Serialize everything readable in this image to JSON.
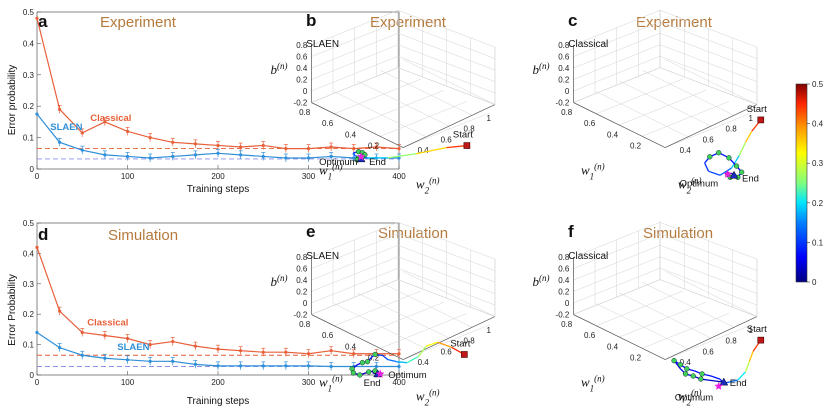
{
  "chart_data": {
    "colormap": [
      "#00007f",
      "#0000ff",
      "#0080ff",
      "#00e5ff",
      "#7fff7f",
      "#ffff00",
      "#ff9900",
      "#ff2600",
      "#7f0000"
    ],
    "colorbar": {
      "ticks": [
        "0",
        "0.1",
        "0.2",
        "0.3",
        "0.4",
        "0.5"
      ]
    },
    "line_panels": [
      {
        "panel": "a",
        "title": "Experiment",
        "type": "line",
        "xlabel": "Training steps",
        "ylabel": "Error probability",
        "xlim": [
          0,
          400
        ],
        "ylim": [
          0,
          0.5
        ],
        "xticks": [
          "0",
          "100",
          "200",
          "300",
          "400"
        ],
        "yticks": [
          "0",
          "0.1",
          "0.2",
          "0.3",
          "0.4",
          "0.5"
        ],
        "x": [
          0,
          25,
          50,
          75,
          100,
          125,
          150,
          175,
          200,
          225,
          250,
          275,
          300,
          325,
          350,
          375,
          400
        ],
        "series": [
          {
            "name": "Classical",
            "color": "#e8603a",
            "values": [
              0.48,
              0.19,
              0.115,
              0.15,
              0.12,
              0.1,
              0.085,
              0.08,
              0.075,
              0.07,
              0.075,
              0.065,
              0.065,
              0.07,
              0.065,
              0.07,
              0.065
            ]
          },
          {
            "name": "SLAEN",
            "color": "#2f8fd8",
            "values": [
              0.175,
              0.085,
              0.06,
              0.045,
              0.04,
              0.035,
              0.04,
              0.045,
              0.05,
              0.045,
              0.04,
              0.035,
              0.035,
              0.04,
              0.035,
              0.035,
              0.035
            ]
          }
        ],
        "dashed": [
          {
            "color": "#e8603a",
            "value": 0.065
          },
          {
            "color": "#8a8fe8",
            "value": 0.032
          }
        ]
      },
      {
        "panel": "d",
        "title": "Simulation",
        "type": "line",
        "xlabel": "Training steps",
        "ylabel": "Error Probability",
        "xlim": [
          0,
          400
        ],
        "ylim": [
          0,
          0.5
        ],
        "xticks": [
          "0",
          "100",
          "200",
          "300",
          "400"
        ],
        "yticks": [
          "0",
          "0.1",
          "0.2",
          "0.3",
          "0.4",
          "0.5"
        ],
        "x": [
          0,
          25,
          50,
          75,
          100,
          125,
          150,
          175,
          200,
          225,
          250,
          275,
          300,
          325,
          350,
          375,
          400
        ],
        "series": [
          {
            "name": "Classical",
            "color": "#e8603a",
            "values": [
              0.42,
              0.21,
              0.14,
              0.13,
              0.12,
              0.1,
              0.11,
              0.095,
              0.085,
              0.08,
              0.075,
              0.075,
              0.07,
              0.08,
              0.07,
              0.07,
              0.07
            ]
          },
          {
            "name": "SLAEN",
            "color": "#2f8fd8",
            "values": [
              0.14,
              0.09,
              0.065,
              0.055,
              0.05,
              0.045,
              0.045,
              0.035,
              0.03,
              0.03,
              0.03,
              0.03,
              0.03,
              0.028,
              0.028,
              0.028,
              0.028
            ]
          }
        ],
        "dashed": [
          {
            "color": "#e8603a",
            "value": 0.065
          },
          {
            "color": "#8a8fe8",
            "value": 0.028
          }
        ]
      }
    ],
    "traj_panels": [
      {
        "panel": "b",
        "title": "Experiment",
        "corner": "SLAEN",
        "type": "3d-trajectory",
        "zlabel": "b(n)",
        "xlabel": "w1(n)",
        "ylabel": "w2(n)",
        "zticks": [
          "-0.2",
          "0",
          "0.2",
          "0.4",
          "0.6",
          "0.8"
        ],
        "xticks": [
          "0.8",
          "0.6",
          "0.4",
          "0.2"
        ],
        "yticks": [
          "0.4",
          "0.6",
          "0.8",
          "1"
        ],
        "annotations": {
          "start": "Start",
          "end": "End",
          "optimum": "Optimum"
        },
        "path": [
          {
            "x": 0.78,
            "y": 0.71,
            "e": 0.48
          },
          {
            "x": 0.7,
            "y": 0.72,
            "e": 0.4
          },
          {
            "x": 0.58,
            "y": 0.75,
            "e": 0.3
          },
          {
            "x": 0.47,
            "y": 0.77,
            "e": 0.22
          },
          {
            "x": 0.39,
            "y": 0.77,
            "e": 0.16
          },
          {
            "x": 0.34,
            "y": 0.76,
            "e": 0.12
          },
          {
            "x": 0.335,
            "y": 0.745,
            "e": 0.1
          },
          {
            "x": 0.355,
            "y": 0.74,
            "e": 0.08
          },
          {
            "x": 0.37,
            "y": 0.745,
            "e": 0.07
          },
          {
            "x": 0.38,
            "y": 0.755,
            "e": 0.06
          },
          {
            "x": 0.37,
            "y": 0.765,
            "e": 0.05
          },
          {
            "x": 0.355,
            "y": 0.77,
            "e": 0.045
          },
          {
            "x": 0.35,
            "y": 0.78,
            "e": 0.04
          },
          {
            "x": 0.365,
            "y": 0.785,
            "e": 0.035
          },
          {
            "x": 0.375,
            "y": 0.78,
            "e": 0.03
          },
          {
            "x": 0.365,
            "y": 0.775,
            "e": 0.03
          }
        ],
        "marker_idx": [
          7,
          8,
          9,
          10,
          11,
          12
        ],
        "optimum": {
          "x": 0.365,
          "y": 0.765
        }
      },
      {
        "panel": "c",
        "title": "Experiment",
        "corner": "Classical",
        "type": "3d-trajectory",
        "zlabel": "b(n)",
        "xlabel": "w1(n)",
        "ylabel": "w2(n)",
        "zticks": [
          "-0.2",
          "0",
          "0.2",
          "0.4",
          "0.6",
          "0.8"
        ],
        "xticks": [
          "0.8",
          "0.6",
          "0.4",
          "0.2"
        ],
        "yticks": [
          "0.4",
          "0.6",
          "0.8",
          "1"
        ],
        "annotations": {
          "start": "Start",
          "end": "End",
          "optimum": "Optimum"
        },
        "path": [
          {
            "x": 0.905,
            "y": 0.585,
            "e": 0.48
          },
          {
            "x": 0.87,
            "y": 0.64,
            "e": 0.4
          },
          {
            "x": 0.845,
            "y": 0.695,
            "e": 0.32
          },
          {
            "x": 0.82,
            "y": 0.76,
            "e": 0.22
          },
          {
            "x": 0.79,
            "y": 0.82,
            "e": 0.15
          },
          {
            "x": 0.745,
            "y": 0.855,
            "e": 0.12
          },
          {
            "x": 0.7,
            "y": 0.835,
            "e": 0.1
          },
          {
            "x": 0.685,
            "y": 0.795,
            "e": 0.09
          },
          {
            "x": 0.705,
            "y": 0.765,
            "e": 0.08
          },
          {
            "x": 0.74,
            "y": 0.745,
            "e": 0.075
          },
          {
            "x": 0.78,
            "y": 0.77,
            "e": 0.07
          },
          {
            "x": 0.81,
            "y": 0.81,
            "e": 0.06
          },
          {
            "x": 0.83,
            "y": 0.84,
            "e": 0.05
          },
          {
            "x": 0.815,
            "y": 0.865,
            "e": 0.04
          },
          {
            "x": 0.785,
            "y": 0.865,
            "e": 0.035
          },
          {
            "x": 0.775,
            "y": 0.85,
            "e": 0.03
          },
          {
            "x": 0.79,
            "y": 0.845,
            "e": 0.02
          },
          {
            "x": 0.8,
            "y": 0.855,
            "e": 0.01
          }
        ],
        "marker_idx": [
          8,
          9,
          10,
          11,
          12,
          13,
          14,
          15
        ],
        "optimum": {
          "x": 0.775,
          "y": 0.85
        }
      },
      {
        "panel": "e",
        "title": "Simulation",
        "corner": "SLAEN",
        "type": "3d-trajectory",
        "zlabel": "b(n)",
        "xlabel": "w1(n)",
        "ylabel": "w2(n)",
        "zticks": [
          "-0.2",
          "0",
          "0.2",
          "0.4",
          "0.6",
          "0.8"
        ],
        "xticks": [
          "0.8",
          "0.6",
          "0.4",
          "0.2"
        ],
        "yticks": [
          "0.4",
          "0.6",
          "0.8",
          "1"
        ],
        "annotations": {
          "start": "Start",
          "end": "End",
          "optimum": "Optimum"
        },
        "path": [
          {
            "x": 0.77,
            "y": 0.695,
            "e": 0.48
          },
          {
            "x": 0.72,
            "y": 0.66,
            "e": 0.42
          },
          {
            "x": 0.665,
            "y": 0.635,
            "e": 0.36
          },
          {
            "x": 0.62,
            "y": 0.655,
            "e": 0.3
          },
          {
            "x": 0.59,
            "y": 0.705,
            "e": 0.25
          },
          {
            "x": 0.545,
            "y": 0.735,
            "e": 0.2
          },
          {
            "x": 0.505,
            "y": 0.73,
            "e": 0.16
          },
          {
            "x": 0.47,
            "y": 0.72,
            "e": 0.12
          },
          {
            "x": 0.45,
            "y": 0.7,
            "e": 0.1
          },
          {
            "x": 0.42,
            "y": 0.695,
            "e": 0.09
          },
          {
            "x": 0.405,
            "y": 0.71,
            "e": 0.08
          },
          {
            "x": 0.39,
            "y": 0.73,
            "e": 0.07
          },
          {
            "x": 0.37,
            "y": 0.735,
            "e": 0.06
          },
          {
            "x": 0.35,
            "y": 0.745,
            "e": 0.05
          },
          {
            "x": 0.33,
            "y": 0.765,
            "e": 0.045
          },
          {
            "x": 0.335,
            "y": 0.785,
            "e": 0.04
          },
          {
            "x": 0.36,
            "y": 0.795,
            "e": 0.035
          },
          {
            "x": 0.395,
            "y": 0.78,
            "e": 0.03
          },
          {
            "x": 0.42,
            "y": 0.775,
            "e": 0.025
          },
          {
            "x": 0.41,
            "y": 0.785,
            "e": 0.02
          },
          {
            "x": 0.43,
            "y": 0.79,
            "e": 0.01
          }
        ],
        "marker_idx": [
          9,
          11,
          12,
          14,
          15,
          16,
          17,
          18
        ],
        "optimum": {
          "x": 0.44,
          "y": 0.79
        }
      },
      {
        "panel": "f",
        "title": "Simulation",
        "corner": "Classical",
        "type": "3d-trajectory",
        "zlabel": "b(n)",
        "xlabel": "w1(n)",
        "ylabel": "w2(n)",
        "zticks": [
          "-0.2",
          "0",
          "0.2",
          "0.4",
          "0.6",
          "0.8"
        ],
        "xticks": [
          "0.8",
          "0.6",
          "0.4",
          "0.2"
        ],
        "yticks": [
          "0.4",
          "0.6",
          "0.8",
          "1"
        ],
        "annotations": {
          "start": "Start",
          "end": "End",
          "optimum": "Optimum"
        },
        "path": [
          {
            "x": 0.905,
            "y": 0.625,
            "e": 0.48
          },
          {
            "x": 0.875,
            "y": 0.68,
            "e": 0.4
          },
          {
            "x": 0.86,
            "y": 0.73,
            "e": 0.33
          },
          {
            "x": 0.845,
            "y": 0.78,
            "e": 0.24
          },
          {
            "x": 0.815,
            "y": 0.82,
            "e": 0.16
          },
          {
            "x": 0.78,
            "y": 0.83,
            "e": 0.12
          },
          {
            "x": 0.76,
            "y": 0.835,
            "e": 0.09
          },
          {
            "x": 0.745,
            "y": 0.815,
            "e": 0.08
          },
          {
            "x": 0.71,
            "y": 0.8,
            "e": 0.075
          },
          {
            "x": 0.675,
            "y": 0.79,
            "e": 0.07
          },
          {
            "x": 0.645,
            "y": 0.775,
            "e": 0.07
          },
          {
            "x": 0.615,
            "y": 0.765,
            "e": 0.065
          },
          {
            "x": 0.59,
            "y": 0.745,
            "e": 0.06
          },
          {
            "x": 0.565,
            "y": 0.725,
            "e": 0.06
          },
          {
            "x": 0.59,
            "y": 0.765,
            "e": 0.055
          },
          {
            "x": 0.61,
            "y": 0.79,
            "e": 0.05
          },
          {
            "x": 0.64,
            "y": 0.8,
            "e": 0.045
          },
          {
            "x": 0.67,
            "y": 0.815,
            "e": 0.04
          },
          {
            "x": 0.7,
            "y": 0.82,
            "e": 0.035
          },
          {
            "x": 0.73,
            "y": 0.825,
            "e": 0.03
          },
          {
            "x": 0.76,
            "y": 0.83,
            "e": 0.02
          }
        ],
        "marker_idx": [
          9,
          11,
          12,
          13,
          15,
          16,
          17
        ],
        "optimum": {
          "x": 0.74,
          "y": 0.85
        }
      }
    ]
  }
}
